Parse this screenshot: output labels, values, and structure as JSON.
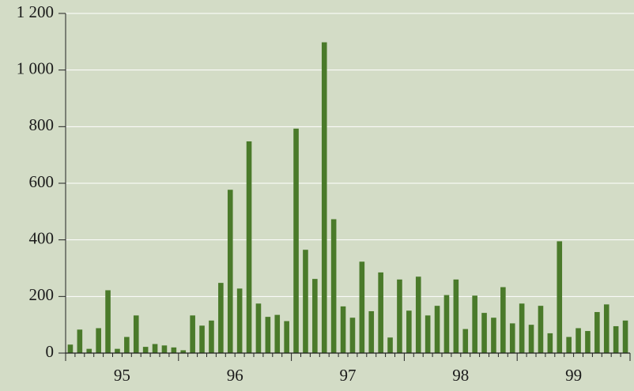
{
  "chart_data": {
    "type": "bar",
    "categories": [
      null,
      null,
      null,
      null,
      null,
      null,
      "95",
      null,
      null,
      null,
      null,
      null,
      null,
      null,
      null,
      null,
      null,
      null,
      "96",
      null,
      null,
      null,
      null,
      null,
      null,
      null,
      null,
      null,
      null,
      null,
      "97",
      null,
      null,
      null,
      null,
      null,
      null,
      null,
      null,
      null,
      null,
      null,
      "98",
      null,
      null,
      null,
      null,
      null,
      null,
      null,
      null,
      null,
      null,
      null,
      "99",
      null,
      null,
      null,
      null,
      null
    ],
    "values": [
      30,
      83,
      15,
      88,
      222,
      15,
      57,
      133,
      22,
      32,
      27,
      20,
      10,
      133,
      97,
      115,
      248,
      577,
      228,
      748,
      175,
      128,
      135,
      113,
      793,
      365,
      262,
      1098,
      473,
      165,
      125,
      323,
      148,
      285,
      55,
      260,
      150,
      270,
      133,
      167,
      205,
      260,
      85,
      203,
      142,
      125,
      233,
      105,
      175,
      100,
      167,
      70,
      395,
      57,
      88,
      78,
      145,
      172,
      95,
      115
    ],
    "color": "#4a7a2a",
    "ylim": [
      0,
      1200
    ],
    "yticks": [
      0,
      200,
      400,
      600,
      800,
      {
        "value": 1000,
        "label": "1 000"
      },
      {
        "value": 1200,
        "label": "1 200"
      }
    ],
    "grid": true
  }
}
